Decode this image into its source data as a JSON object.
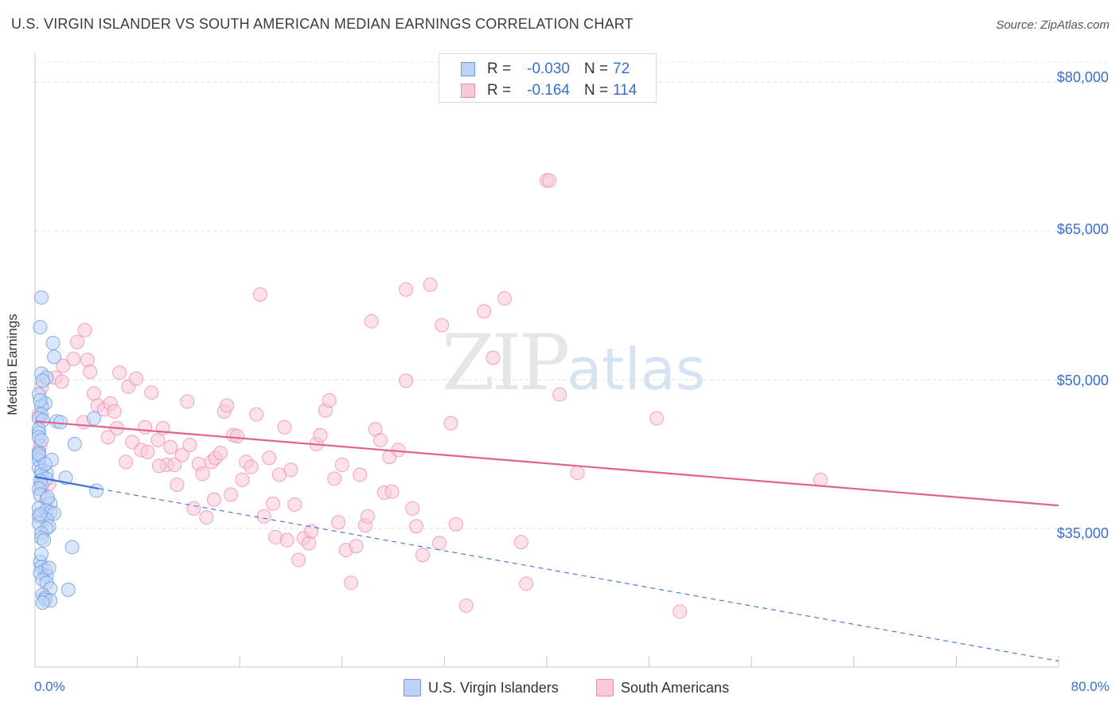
{
  "title": "U.S. VIRGIN ISLANDER VS SOUTH AMERICAN MEDIAN EARNINGS CORRELATION CHART",
  "source": "Source: ZipAtlas.com",
  "watermark": {
    "zip": "ZIP",
    "atlas": "atlas"
  },
  "stats": [
    {
      "r_label": "R =",
      "r_value": "-0.030",
      "n_label": "N =",
      "n_value": "72",
      "color": "#6f9be0",
      "fill": "#bcd3f5"
    },
    {
      "r_label": "R =",
      "r_value": "-0.164",
      "n_label": "N =",
      "n_value": "114",
      "color": "#f08cae",
      "fill": "#f9c9d8"
    }
  ],
  "legend": [
    {
      "label": "U.S. Virgin Islanders",
      "color": "#6f9be0",
      "fill": "#bcd3f5"
    },
    {
      "label": "South Americans",
      "color": "#f08cae",
      "fill": "#f9c9d8"
    }
  ],
  "chart_data": {
    "type": "scatter",
    "ylabel": "Median Earnings",
    "xlim": [
      0,
      80
    ],
    "ylim": [
      21000,
      83500
    ],
    "x_tick_labels": {
      "min": "0.0%",
      "max": "80.0%"
    },
    "y_ticks": [
      {
        "value": 35000,
        "label": "$35,000"
      },
      {
        "value": 50000,
        "label": "$50,000"
      },
      {
        "value": 65000,
        "label": "$65,000"
      },
      {
        "value": 80000,
        "label": "$80,000"
      }
    ],
    "grid": true,
    "series": [
      {
        "name": "U.S. Virgin Islanders",
        "color": "#6f9be0",
        "fill": "#bcd3f5",
        "trend": {
          "x0": 0,
          "y0": 40200,
          "x1": 5,
          "y1": 39000,
          "dash_x1": 80,
          "dash_y1": 21600,
          "line": "#3a72d4"
        },
        "points": [
          [
            0.5,
            58300
          ],
          [
            0.4,
            55300
          ],
          [
            1.4,
            53700
          ],
          [
            1.5,
            52300
          ],
          [
            0.5,
            50600
          ],
          [
            0.9,
            50200
          ],
          [
            0.6,
            49900
          ],
          [
            0.3,
            48500
          ],
          [
            0.8,
            47600
          ],
          [
            0.5,
            47300
          ],
          [
            0.5,
            46500
          ],
          [
            0.3,
            46100
          ],
          [
            4.6,
            46100
          ],
          [
            0.6,
            45900
          ],
          [
            1.7,
            45800
          ],
          [
            2.0,
            45700
          ],
          [
            0.3,
            45000
          ],
          [
            0.3,
            44600
          ],
          [
            0.3,
            44200
          ],
          [
            3.1,
            43500
          ],
          [
            0.3,
            42700
          ],
          [
            0.3,
            42300
          ],
          [
            0.3,
            41900
          ],
          [
            1.3,
            41900
          ],
          [
            0.3,
            41100
          ],
          [
            0.5,
            40800
          ],
          [
            0.9,
            40600
          ],
          [
            0.5,
            40400
          ],
          [
            2.4,
            40100
          ],
          [
            0.9,
            40000
          ],
          [
            0.4,
            39800
          ],
          [
            0.5,
            39400
          ],
          [
            0.3,
            39000
          ],
          [
            4.8,
            38800
          ],
          [
            0.4,
            38400
          ],
          [
            0.9,
            37900
          ],
          [
            1.2,
            37500
          ],
          [
            0.3,
            37000
          ],
          [
            0.9,
            36800
          ],
          [
            1.2,
            36600
          ],
          [
            1.5,
            36500
          ],
          [
            0.3,
            36200
          ],
          [
            0.9,
            35900
          ],
          [
            0.3,
            35500
          ],
          [
            1.1,
            35200
          ],
          [
            0.9,
            35000
          ],
          [
            0.5,
            34500
          ],
          [
            0.5,
            34000
          ],
          [
            2.9,
            33100
          ],
          [
            0.4,
            31600
          ],
          [
            0.5,
            31100
          ],
          [
            0.8,
            30800
          ],
          [
            0.4,
            30500
          ],
          [
            0.9,
            30200
          ],
          [
            0.6,
            29800
          ],
          [
            0.9,
            29500
          ],
          [
            1.2,
            28900
          ],
          [
            2.6,
            28800
          ],
          [
            0.6,
            28300
          ],
          [
            0.8,
            28000
          ],
          [
            0.8,
            27800
          ],
          [
            1.2,
            27700
          ],
          [
            0.6,
            27500
          ],
          [
            0.3,
            42500
          ],
          [
            0.5,
            43900
          ],
          [
            0.8,
            41500
          ],
          [
            1.0,
            38100
          ],
          [
            0.4,
            36400
          ],
          [
            0.7,
            33800
          ],
          [
            0.5,
            32400
          ],
          [
            1.1,
            31000
          ],
          [
            0.4,
            47900
          ]
        ]
      },
      {
        "name": "South Americans",
        "color": "#f08cae",
        "fill": "#f9c9d8",
        "trend": {
          "x0": 0,
          "y0": 45800,
          "x1": 80,
          "y1": 37300,
          "line": "#e0638f"
        },
        "points": [
          [
            0.5,
            49200
          ],
          [
            0.3,
            46500
          ],
          [
            0.4,
            43300
          ],
          [
            0.5,
            39000
          ],
          [
            1.1,
            39500
          ],
          [
            1.6,
            50200
          ],
          [
            2.1,
            49800
          ],
          [
            2.2,
            51400
          ],
          [
            3.0,
            52100
          ],
          [
            3.3,
            53800
          ],
          [
            3.9,
            55000
          ],
          [
            4.1,
            52000
          ],
          [
            4.3,
            50800
          ],
          [
            4.6,
            48600
          ],
          [
            4.9,
            47400
          ],
          [
            5.4,
            47000
          ],
          [
            5.9,
            47600
          ],
          [
            6.2,
            46800
          ],
          [
            6.4,
            45100
          ],
          [
            6.6,
            50700
          ],
          [
            7.1,
            41700
          ],
          [
            7.3,
            49300
          ],
          [
            7.6,
            43700
          ],
          [
            7.9,
            50100
          ],
          [
            8.3,
            42900
          ],
          [
            8.6,
            45200
          ],
          [
            8.8,
            42700
          ],
          [
            9.1,
            48700
          ],
          [
            9.6,
            43900
          ],
          [
            10.0,
            45100
          ],
          [
            10.3,
            41400
          ],
          [
            10.6,
            43200
          ],
          [
            10.9,
            41400
          ],
          [
            11.1,
            39400
          ],
          [
            11.5,
            42400
          ],
          [
            11.9,
            47800
          ],
          [
            12.1,
            43400
          ],
          [
            12.4,
            37000
          ],
          [
            12.8,
            41500
          ],
          [
            13.1,
            40500
          ],
          [
            13.4,
            36100
          ],
          [
            13.8,
            41700
          ],
          [
            14.1,
            42100
          ],
          [
            14.5,
            42600
          ],
          [
            14.8,
            46800
          ],
          [
            15.0,
            47400
          ],
          [
            15.3,
            38400
          ],
          [
            15.5,
            44400
          ],
          [
            15.8,
            44300
          ],
          [
            16.2,
            39900
          ],
          [
            16.5,
            41700
          ],
          [
            16.9,
            41200
          ],
          [
            17.3,
            46500
          ],
          [
            17.6,
            58600
          ],
          [
            17.9,
            36200
          ],
          [
            18.3,
            42100
          ],
          [
            18.6,
            37500
          ],
          [
            18.8,
            34100
          ],
          [
            19.1,
            40400
          ],
          [
            19.5,
            45200
          ],
          [
            19.7,
            33800
          ],
          [
            20.0,
            40900
          ],
          [
            20.3,
            37400
          ],
          [
            20.6,
            31800
          ],
          [
            21.0,
            34000
          ],
          [
            21.4,
            33500
          ],
          [
            21.6,
            34700
          ],
          [
            22.0,
            43500
          ],
          [
            22.3,
            44400
          ],
          [
            22.7,
            46900
          ],
          [
            23.0,
            47900
          ],
          [
            23.4,
            40000
          ],
          [
            23.7,
            35600
          ],
          [
            24.0,
            41400
          ],
          [
            24.3,
            32800
          ],
          [
            24.7,
            29500
          ],
          [
            25.1,
            33200
          ],
          [
            25.4,
            40400
          ],
          [
            25.8,
            35300
          ],
          [
            26.0,
            36200
          ],
          [
            26.3,
            55900
          ],
          [
            26.6,
            45000
          ],
          [
            27.0,
            43900
          ],
          [
            27.3,
            38600
          ],
          [
            27.7,
            42200
          ],
          [
            27.9,
            38700
          ],
          [
            28.4,
            42900
          ],
          [
            29.0,
            59100
          ],
          [
            29.0,
            49900
          ],
          [
            29.5,
            37000
          ],
          [
            29.8,
            35200
          ],
          [
            30.3,
            32300
          ],
          [
            30.9,
            59600
          ],
          [
            31.6,
            33500
          ],
          [
            31.8,
            55500
          ],
          [
            32.5,
            45600
          ],
          [
            32.9,
            35400
          ],
          [
            33.7,
            27200
          ],
          [
            35.1,
            56900
          ],
          [
            35.8,
            52200
          ],
          [
            36.7,
            58200
          ],
          [
            38.0,
            33600
          ],
          [
            38.4,
            29400
          ],
          [
            40.0,
            70100
          ],
          [
            40.2,
            70100
          ],
          [
            41.0,
            48500
          ],
          [
            42.4,
            40600
          ],
          [
            48.6,
            46100
          ],
          [
            50.4,
            26600
          ],
          [
            61.4,
            39900
          ],
          [
            3.8,
            45700
          ],
          [
            5.7,
            44200
          ],
          [
            9.7,
            41300
          ],
          [
            14.0,
            37900
          ]
        ]
      }
    ]
  }
}
